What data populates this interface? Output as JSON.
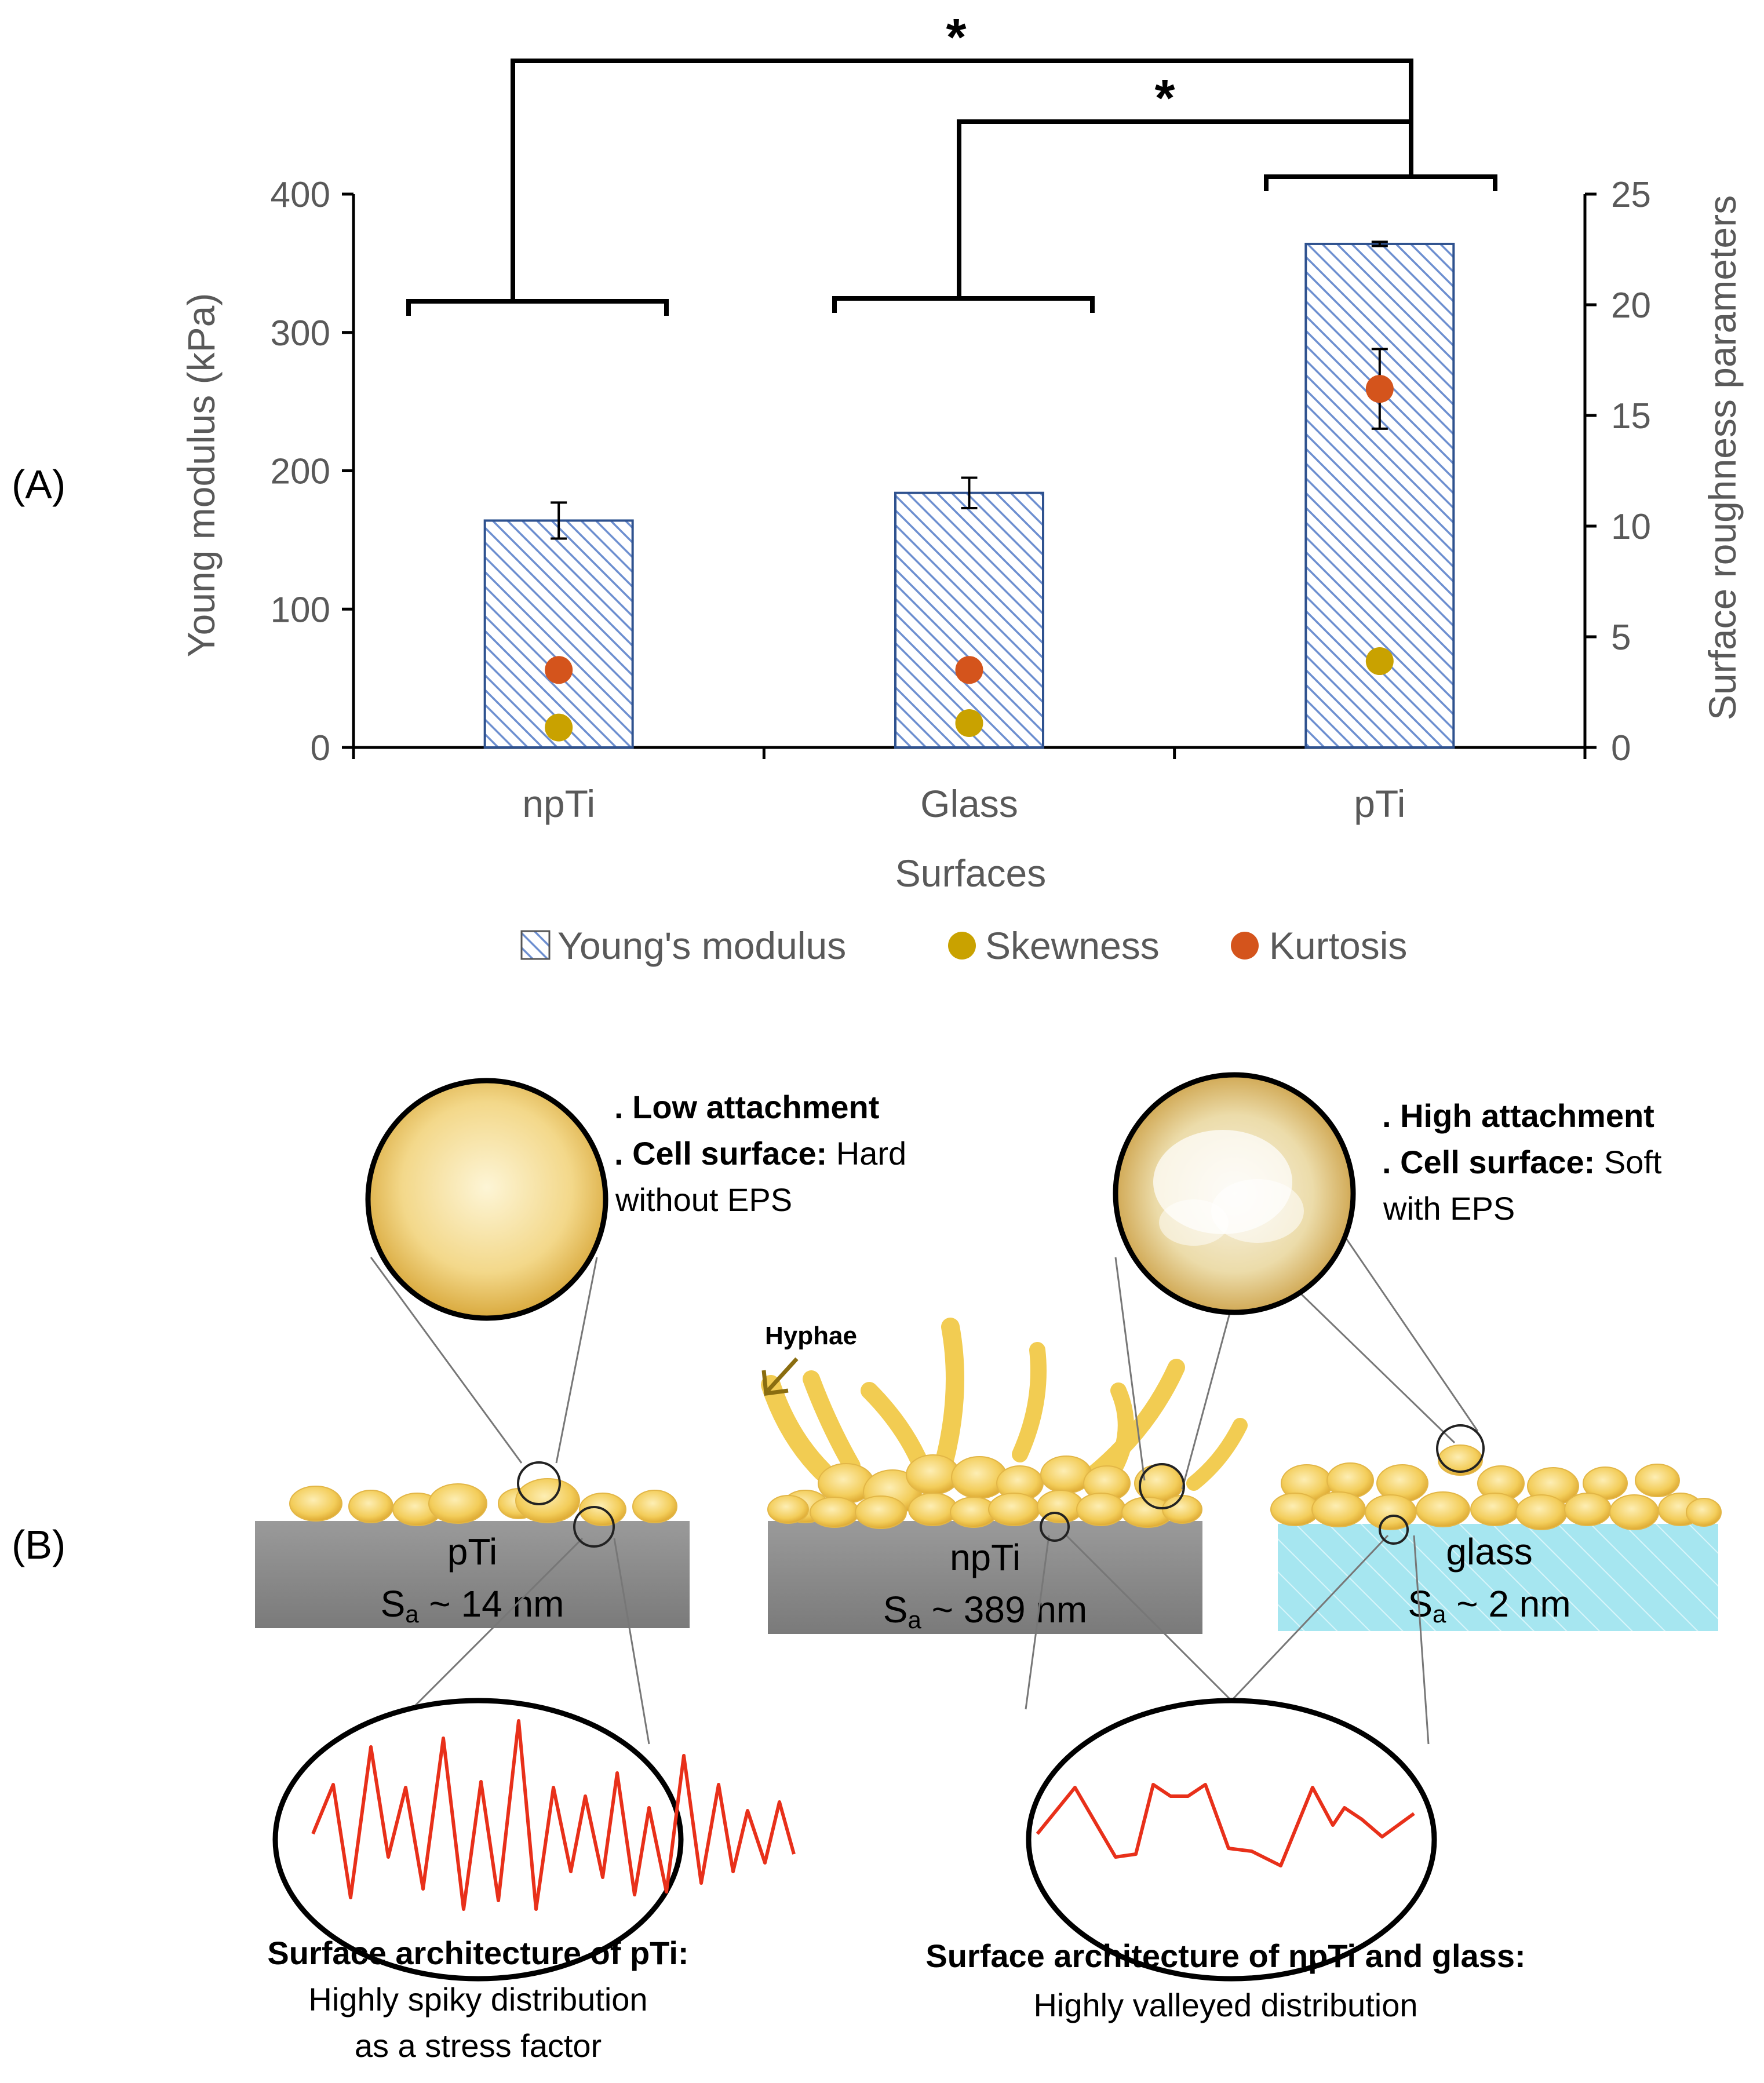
{
  "panel_labels": {
    "a": "(A)",
    "b": "(B)"
  },
  "colors": {
    "bar_hatch": "#4472c4",
    "skewness": "#c9a200",
    "kurtosis": "#d4541c",
    "cell": "#f2cc52",
    "substrate_ti": "#8c8c8c",
    "substrate_glass": "#a6e6f0",
    "profile_line": "#e8301a"
  },
  "chart_data": {
    "type": "bar",
    "categories": [
      "npTi",
      "Glass",
      "pTi"
    ],
    "xlabel": "Surfaces",
    "ylabel": "Young modulus (kPa)",
    "y2label": "Surface roughness parameters",
    "ylim": [
      0,
      400
    ],
    "y2lim": [
      0,
      25
    ],
    "yticks": [
      "0",
      "100",
      "200",
      "300",
      "400"
    ],
    "y2ticks": [
      "0",
      "5",
      "10",
      "15",
      "20",
      "25"
    ],
    "series": [
      {
        "name": "Young's modulus",
        "axis": "left",
        "style": "hatched-bar",
        "values": [
          164,
          184,
          364
        ],
        "errors": [
          13,
          11,
          1.5
        ]
      },
      {
        "name": "Skewness",
        "axis": "right",
        "style": "point",
        "values": [
          0.9,
          1.1,
          3.9
        ],
        "errors": [
          0,
          0,
          0
        ]
      },
      {
        "name": "Kurtosis",
        "axis": "right",
        "style": "point",
        "values": [
          3.5,
          3.5,
          16.2
        ],
        "errors": [
          0,
          0.4,
          1.8
        ]
      }
    ],
    "significance": [
      {
        "from": "npTi",
        "to": "pTi",
        "label": "*"
      },
      {
        "from": "Glass",
        "to": "pTi",
        "label": "*"
      }
    ],
    "legend_position": "bottom-center"
  },
  "diagram": {
    "left_callout": {
      "line1": ". Low attachment",
      "line2_bold": ". Cell surface:",
      "line2_rest": " Hard",
      "line3": "without EPS"
    },
    "right_callout": {
      "line1": ". High attachment",
      "line2_bold": ". Cell surface:",
      "line2_rest": " Soft",
      "line3": "with EPS"
    },
    "hyphae_label": "Hyphae",
    "substrates": [
      {
        "name": "pTi",
        "prefix": "S",
        "sub": "a",
        "suffix": " ~ 14 nm"
      },
      {
        "name": "npTi",
        "prefix": "S",
        "sub": "a",
        "suffix": " ~ 389 nm"
      },
      {
        "name": "glass",
        "prefix": "S",
        "sub": "a",
        "suffix": " ~ 2 nm"
      }
    ],
    "left_caption": {
      "title": "Surface architecture of pTi:",
      "line2": "Highly spiky distribution",
      "line3": "as a stress factor"
    },
    "right_caption": {
      "title": "Surface architecture of npTi and glass:",
      "line2": "Highly valleyed distribution"
    }
  }
}
